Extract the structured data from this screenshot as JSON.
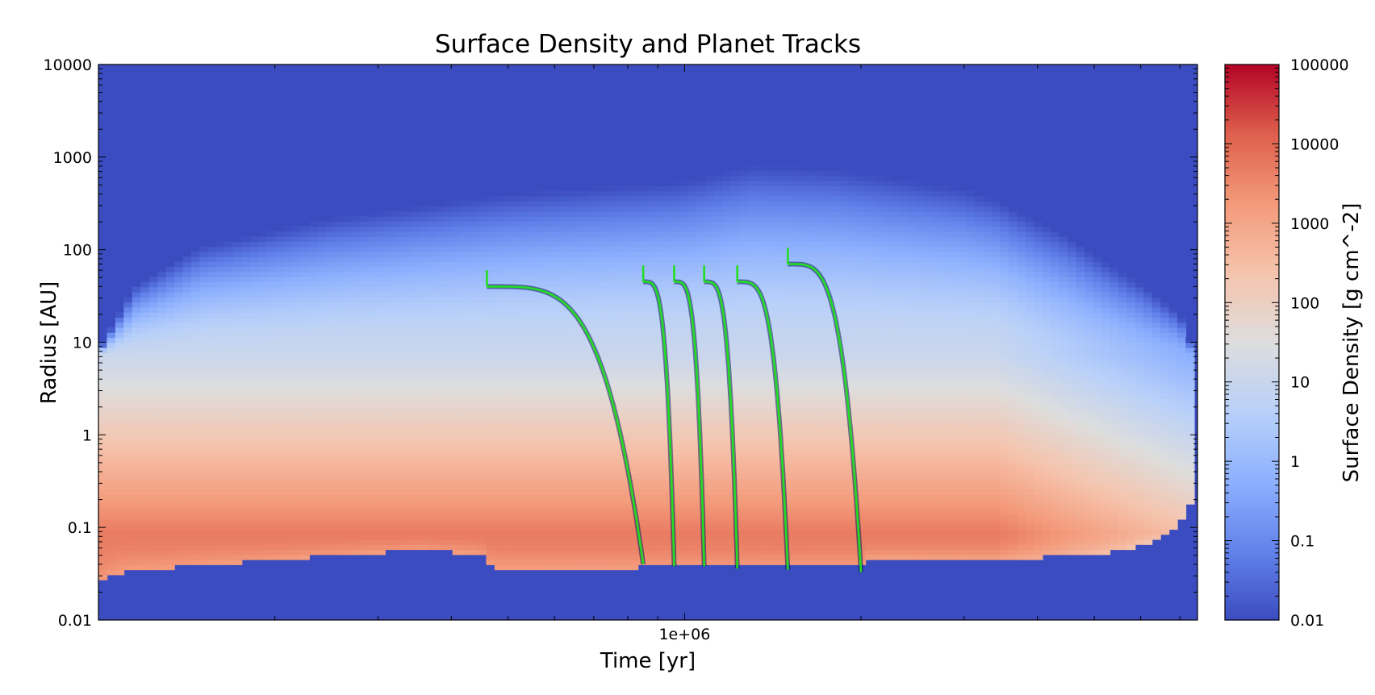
{
  "chart_data": {
    "type": "heatmap",
    "title": "Surface Density and Planet Tracks",
    "xlabel": "Time [yr]",
    "ylabel": "Radius [AU]",
    "x_scale": "log",
    "y_scale": "log",
    "xlim": [
      100000,
      7500000
    ],
    "ylim": [
      0.01,
      10000
    ],
    "x_ticks": [
      {
        "value": 1000000,
        "label": "1e+06"
      }
    ],
    "y_ticks": [
      {
        "value": 10000,
        "label": "10000"
      },
      {
        "value": 1000,
        "label": "1000"
      },
      {
        "value": 100,
        "label": "100"
      },
      {
        "value": 10,
        "label": "10"
      },
      {
        "value": 1,
        "label": "1"
      },
      {
        "value": 0.1,
        "label": "0.1"
      },
      {
        "value": 0.01,
        "label": "0.01"
      }
    ],
    "colorbar": {
      "label": "Surface Density [g cm^-2]",
      "scale": "log",
      "range": [
        0.01,
        100000
      ],
      "colormap": "coolwarm",
      "low_color": "#3b4cc0",
      "mid_color": "#dddddd",
      "high_color": "#b40426",
      "ticks": [
        {
          "value": 100000,
          "label": "100000"
        },
        {
          "value": 10000,
          "label": "10000"
        },
        {
          "value": 1000,
          "label": "1000"
        },
        {
          "value": 100,
          "label": "100"
        },
        {
          "value": 10,
          "label": "10"
        },
        {
          "value": 1,
          "label": "1"
        },
        {
          "value": 0.1,
          "label": "0.1"
        },
        {
          "value": 0.01,
          "label": "0.01"
        }
      ]
    },
    "track_color": "#22dd22",
    "grid": false,
    "disk": {
      "outer_edge": [
        {
          "t": 100000,
          "r": 8
        },
        {
          "t": 115000,
          "r": 40
        },
        {
          "t": 150000,
          "r": 110
        },
        {
          "t": 250000,
          "r": 220
        },
        {
          "t": 500000,
          "r": 400
        },
        {
          "t": 1000000,
          "r": 550
        },
        {
          "t": 1300000,
          "r": 820
        },
        {
          "t": 1800000,
          "r": 750
        },
        {
          "t": 3000000,
          "r": 450
        },
        {
          "t": 4500000,
          "r": 200
        },
        {
          "t": 6000000,
          "r": 70
        },
        {
          "t": 7000000,
          "r": 30
        },
        {
          "t": 7400000,
          "r": 8
        }
      ],
      "inner_edge": [
        {
          "t": 100000,
          "r": 0.025
        },
        {
          "t": 110000,
          "r": 0.034
        },
        {
          "t": 200000,
          "r": 0.045
        },
        {
          "t": 350000,
          "r": 0.058
        },
        {
          "t": 450000,
          "r": 0.052
        },
        {
          "t": 470000,
          "r": 0.037
        },
        {
          "t": 2000000,
          "r": 0.038
        },
        {
          "t": 2050000,
          "r": 0.048
        },
        {
          "t": 4000000,
          "r": 0.048
        },
        {
          "t": 5500000,
          "r": 0.055
        },
        {
          "t": 6500000,
          "r": 0.075
        },
        {
          "t": 7000000,
          "r": 0.12
        },
        {
          "t": 7400000,
          "r": 0.22
        }
      ],
      "peak_radius": 0.09,
      "peak_density": 5000,
      "outer_density": 10,
      "inner_end_r": 7.5
    },
    "planet_tracks": [
      {
        "t_start": 460000,
        "t_end": 850000,
        "r_start": 40,
        "r_end": 0.04
      },
      {
        "t_start": 850000,
        "t_end": 960000,
        "r_start": 45,
        "r_end": 0.038
      },
      {
        "t_start": 960000,
        "t_end": 1080000,
        "r_start": 45,
        "r_end": 0.038
      },
      {
        "t_start": 1080000,
        "t_end": 1230000,
        "r_start": 45,
        "r_end": 0.036
      },
      {
        "t_start": 1230000,
        "t_end": 1500000,
        "r_start": 45,
        "r_end": 0.035
      },
      {
        "t_start": 1500000,
        "t_end": 2000000,
        "r_start": 70,
        "r_end": 0.033
      }
    ]
  }
}
